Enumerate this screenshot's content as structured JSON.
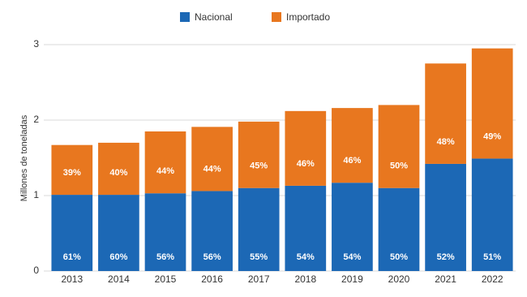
{
  "chart_data": {
    "type": "stacked_bar",
    "y_label": "Millones de toneladas",
    "categories": [
      "2013",
      "2014",
      "2015",
      "2016",
      "2017",
      "2018",
      "2019",
      "2020",
      "2021",
      "2022"
    ],
    "series": [
      {
        "name": "Nacional",
        "color": "#1c68b5",
        "values": [
          1.01,
          1.01,
          1.03,
          1.06,
          1.1,
          1.13,
          1.17,
          1.1,
          1.42,
          1.49
        ],
        "labels": [
          "61%",
          "60%",
          "56%",
          "56%",
          "55%",
          "54%",
          "54%",
          "50%",
          "52%",
          "51%"
        ]
      },
      {
        "name": "Importado",
        "color": "#e8771f",
        "values": [
          0.66,
          0.69,
          0.82,
          0.85,
          0.88,
          0.99,
          0.99,
          1.1,
          1.33,
          1.46
        ],
        "labels": [
          "39%",
          "40%",
          "44%",
          "44%",
          "45%",
          "46%",
          "46%",
          "50%",
          "48%",
          "49%"
        ]
      }
    ],
    "ylim": [
      0,
      3
    ],
    "yticks": [
      0,
      1,
      2,
      3
    ],
    "grid": true,
    "legend": "top"
  }
}
